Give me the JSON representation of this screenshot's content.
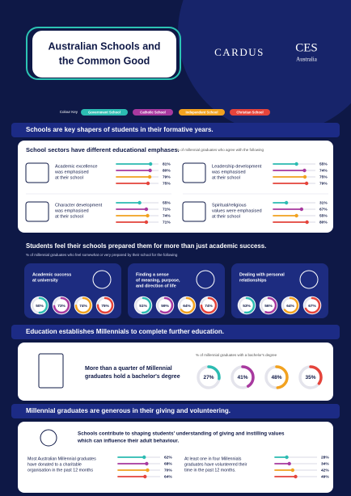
{
  "header": {
    "title_lines": [
      "Australian Schools and",
      "the Common Good"
    ],
    "logo_left": "CARDUS",
    "logo_right": "CES",
    "logo_right_sub": "Australia"
  },
  "colour_key": {
    "label": "Colour Key",
    "items": [
      {
        "name": "Government School",
        "color": "#2cbcb2"
      },
      {
        "name": "Catholic School",
        "color": "#a8399f"
      },
      {
        "name": "Independent School",
        "color": "#f2a21f"
      },
      {
        "name": "Christian School",
        "color": "#e5443b"
      }
    ]
  },
  "sections": [
    {
      "heading": "Schools are key shapers of students in their formative years.",
      "subheading": "School sectors have different educational emphases.",
      "note": "% of millennial graduates who agree with the following",
      "items": [
        {
          "label_lines": [
            "Academic excellence",
            "was emphasised",
            "at their school"
          ],
          "values": [
            {
              "value": 81,
              "label": "81%"
            },
            {
              "value": 80,
              "label": "80%"
            },
            {
              "value": 79,
              "label": "79%"
            },
            {
              "value": 75,
              "label": "75%"
            }
          ]
        },
        {
          "label_lines": [
            "Leadership development",
            "was emphasised",
            "at their school"
          ],
          "values": [
            {
              "value": 55,
              "label": "55%"
            },
            {
              "value": 74,
              "label": "74%"
            },
            {
              "value": 75,
              "label": "75%"
            },
            {
              "value": 79,
              "label": "79%"
            }
          ]
        },
        {
          "label_lines": [
            "Character development",
            "was emphasised",
            "at their school"
          ],
          "values": [
            {
              "value": 55,
              "label": "55%"
            },
            {
              "value": 71,
              "label": "71%"
            },
            {
              "value": 74,
              "label": "74%"
            },
            {
              "value": 71,
              "label": "71%"
            }
          ]
        },
        {
          "label_lines": [
            "Spiritual/religious",
            "values were emphasised",
            "at their school"
          ],
          "values": [
            {
              "value": 31,
              "label": "31%"
            },
            {
              "value": 67,
              "label": "67%"
            },
            {
              "value": 55,
              "label": "55%"
            },
            {
              "value": 80,
              "label": "80%"
            }
          ]
        }
      ]
    },
    {
      "heading": "Students feel their schools prepared them for more than just academic success.",
      "note": "% of millennial graduates who feel somewhat or very prepared by their school for the following",
      "items": [
        {
          "label_lines": [
            "Academic success",
            "at university"
          ],
          "values": [
            {
              "value": 50,
              "label": "50%"
            },
            {
              "value": 73,
              "label": "73%"
            },
            {
              "value": 74,
              "label": "74%"
            },
            {
              "value": 75,
              "label": "75%"
            }
          ]
        },
        {
          "label_lines": [
            "Finding a sense",
            "of meaning, purpose,",
            "and direction of life"
          ],
          "values": [
            {
              "value": 51,
              "label": "51%"
            },
            {
              "value": 59,
              "label": "59%"
            },
            {
              "value": 64,
              "label": "64%"
            },
            {
              "value": 74,
              "label": "74%"
            }
          ]
        },
        {
          "label_lines": [
            "Dealing with personal",
            "relationships"
          ],
          "values": [
            {
              "value": 53,
              "label": "53%"
            },
            {
              "value": 56,
              "label": "56%"
            },
            {
              "value": 64,
              "label": "64%"
            },
            {
              "value": 67,
              "label": "67%"
            }
          ]
        }
      ]
    },
    {
      "heading": "Education establishes Millennials to complete further education.",
      "text_lines": [
        "More than a quarter of Millennial",
        "graduates hold a bachelor's degree"
      ],
      "note": "% of millennial graduates with a bachelor's degree",
      "values": [
        {
          "value": 27,
          "label": "27%"
        },
        {
          "value": 41,
          "label": "41%"
        },
        {
          "value": 48,
          "label": "48%"
        },
        {
          "value": 35,
          "label": "35%"
        }
      ]
    },
    {
      "heading": "Millennial graduates are generous in their giving and volunteering.",
      "intro_lines": [
        "Schools contribute to shaping students' understanding of giving and instilling values",
        "which can influence their adult behaviour."
      ],
      "items": [
        {
          "label_lines": [
            "Most Australian Millennial graduates",
            "have donated to a charitable",
            "organisation in the past 12 months"
          ],
          "values": [
            {
              "value": 62,
              "label": "62%"
            },
            {
              "value": 68,
              "label": "68%"
            },
            {
              "value": 70,
              "label": "70%"
            },
            {
              "value": 64,
              "label": "64%"
            }
          ]
        },
        {
          "label_lines": [
            "At least one in four Millennials",
            "graduates have volunteered their",
            "time in the past 12 months."
          ],
          "values": [
            {
              "value": 28,
              "label": "28%"
            },
            {
              "value": 34,
              "label": "34%"
            },
            {
              "value": 42,
              "label": "42%"
            },
            {
              "value": 49,
              "label": "49%"
            }
          ]
        }
      ]
    }
  ]
}
